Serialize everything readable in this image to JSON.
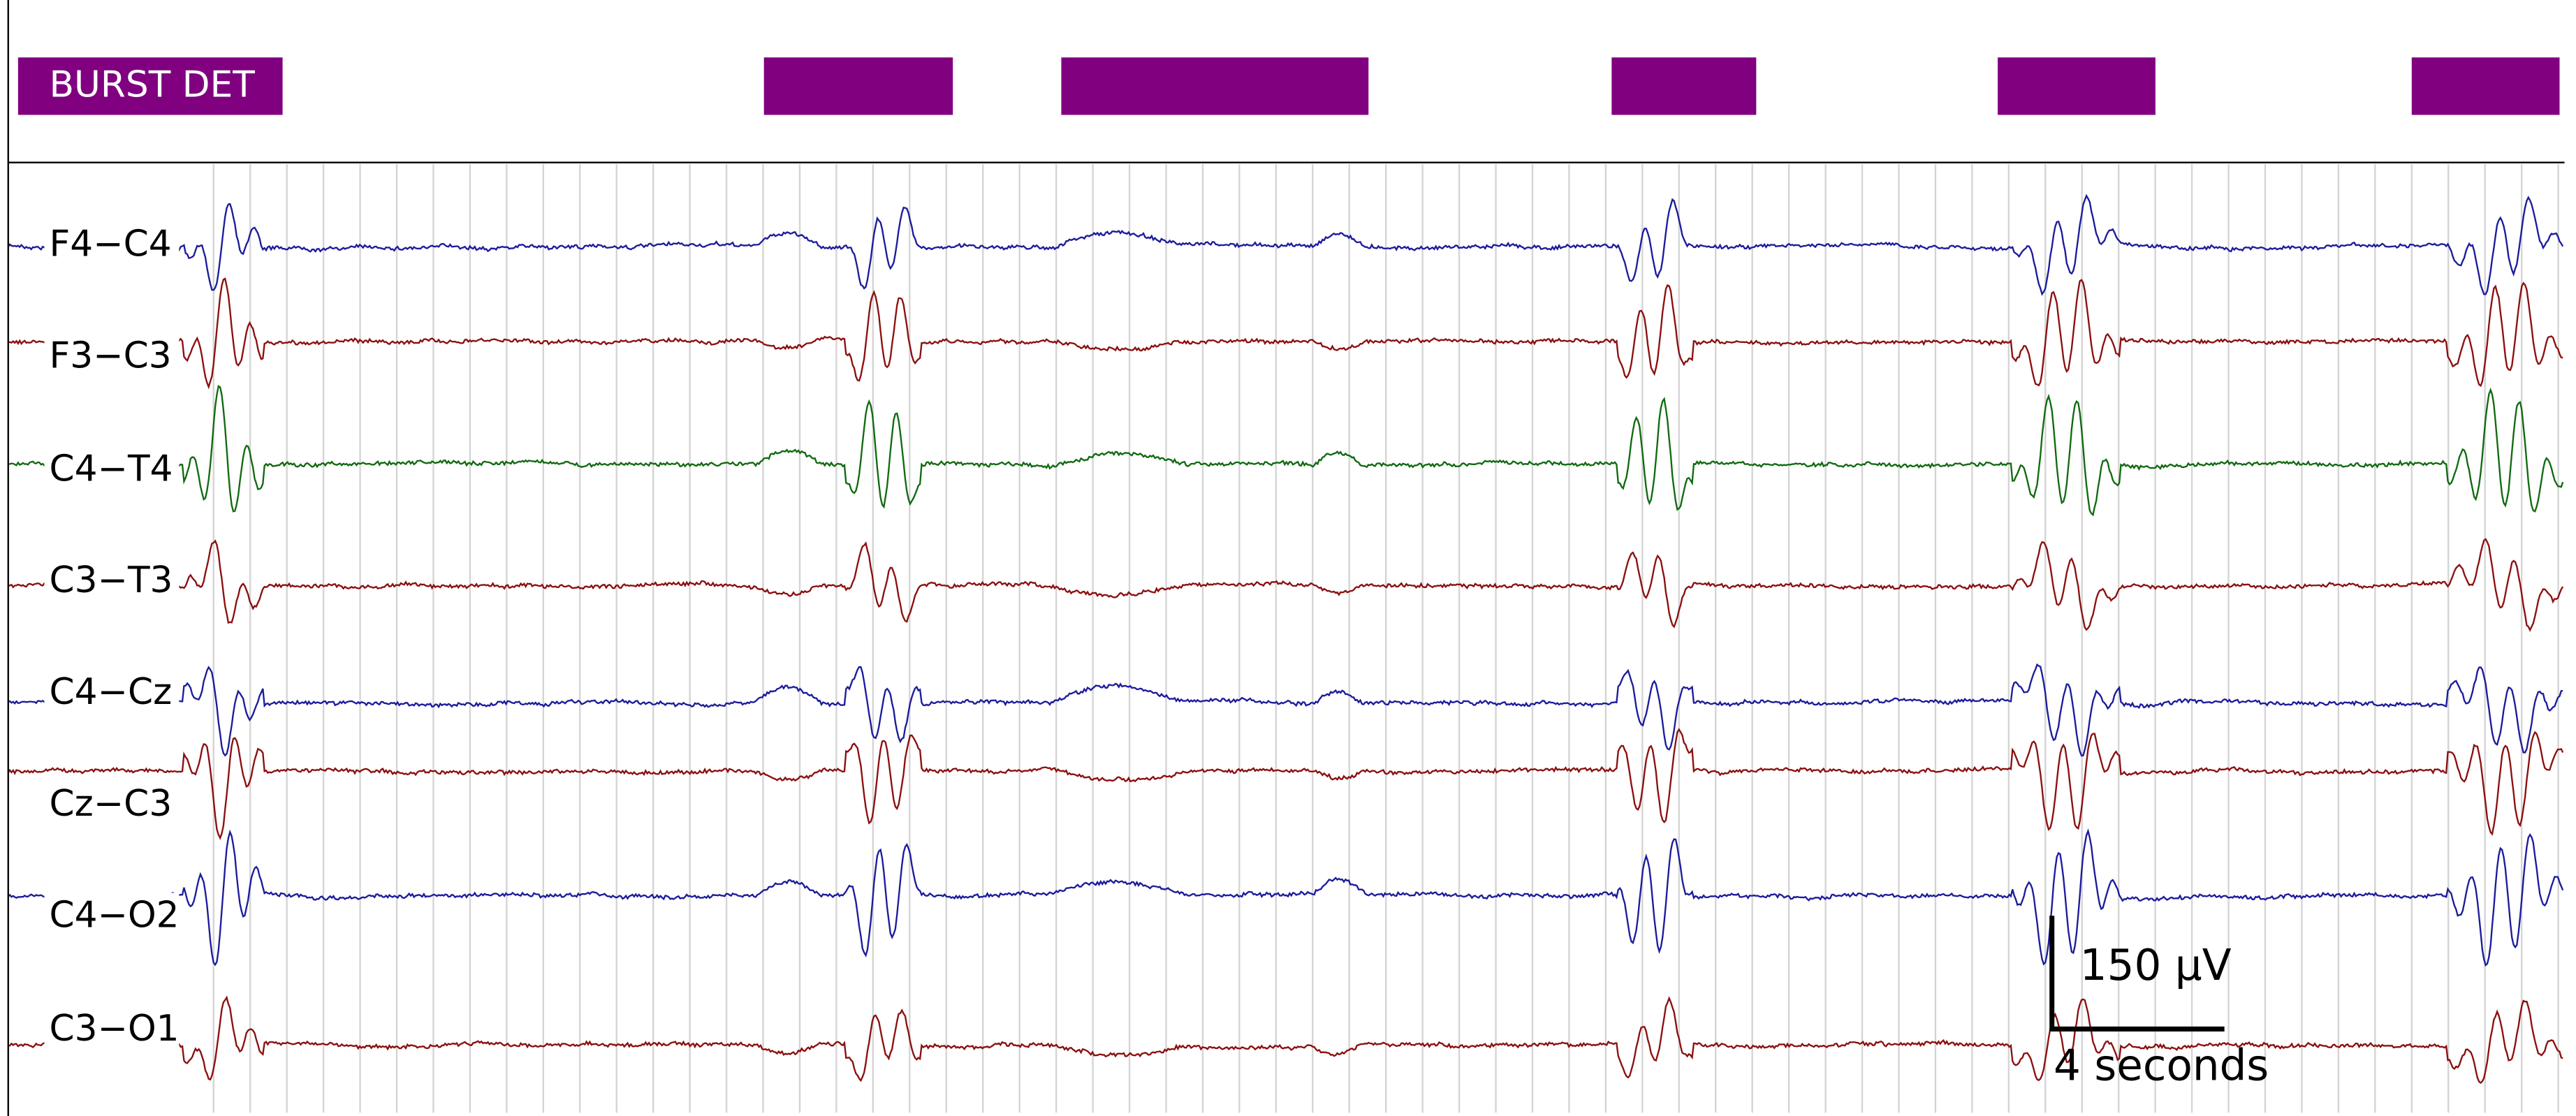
{
  "burst_detection": {
    "label": "BURST DET"
  },
  "channels": [
    {
      "label": "F4−C4",
      "color": "#1c1c9c"
    },
    {
      "label": "F3−C3",
      "color": "#8b1010"
    },
    {
      "label": "C4−T4",
      "color": "#116a11"
    },
    {
      "label": "C3−T3",
      "color": "#8b1010"
    },
    {
      "label": "C4−Cz",
      "color": "#1c1c9c"
    },
    {
      "label": "Cz−C3",
      "color": "#8b1010"
    },
    {
      "label": "C4−O2",
      "color": "#1c1c9c"
    },
    {
      "label": "C3−O1",
      "color": "#8b1010"
    }
  ],
  "scale_bar": {
    "amplitude": "150 µV",
    "time": "4 seconds"
  }
}
